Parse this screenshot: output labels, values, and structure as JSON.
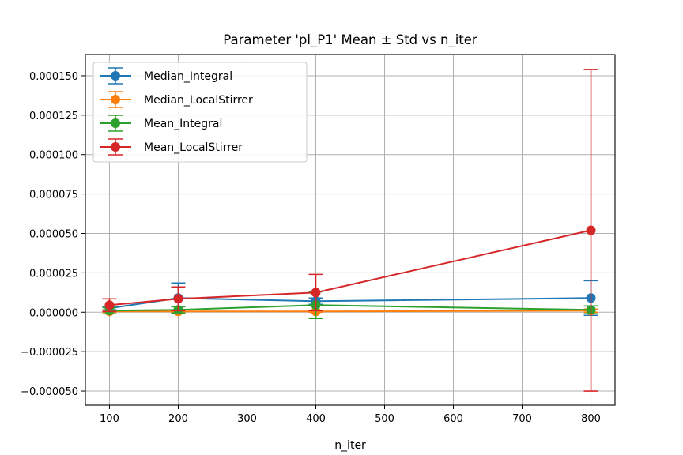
{
  "chart_data": {
    "type": "line",
    "title": "Parameter 'pl_P1' Mean ± Std vs n_iter",
    "xlabel": "n_iter",
    "ylabel": "",
    "x": [
      100,
      200,
      400,
      800
    ],
    "xlim": [
      65,
      835
    ],
    "ylim": [
      -5.9e-05,
      0.0001635
    ],
    "xticks": [
      100,
      200,
      300,
      400,
      500,
      600,
      700,
      800
    ],
    "xtick_labels": [
      "100",
      "200",
      "300",
      "400",
      "500",
      "600",
      "700",
      "800"
    ],
    "yticks": [
      -5e-05,
      -2.5e-05,
      0,
      2.5e-05,
      5e-05,
      7.5e-05,
      0.0001,
      0.000125,
      0.00015
    ],
    "ytick_labels": [
      "−0.000050",
      "−0.000025",
      "0.000000",
      "0.000025",
      "0.000050",
      "0.000075",
      "0.000100",
      "0.000125",
      "0.000150"
    ],
    "grid": true,
    "legend_position": "top-left",
    "error_bars": "std",
    "series": [
      {
        "name": "Median_Integral",
        "color": "#1f77b4",
        "values": [
          2.5e-06,
          9e-06,
          7e-06,
          9e-06
        ],
        "err": [
          1e-06,
          9.5e-06,
          2e-06,
          1.1e-05
        ]
      },
      {
        "name": "Median_LocalStirrer",
        "color": "#ff7f0e",
        "values": [
          5e-07,
          5e-07,
          5e-07,
          1e-06
        ],
        "err": [
          5e-07,
          5e-07,
          5e-07,
          1e-06
        ]
      },
      {
        "name": "Mean_Integral",
        "color": "#2ca02c",
        "values": [
          1e-06,
          1.5e-06,
          4.5e-06,
          1.5e-06
        ],
        "err": [
          2e-06,
          2e-06,
          8.5e-06,
          2.5e-06
        ]
      },
      {
        "name": "Mean_LocalStirrer",
        "color": "#d62728",
        "values": [
          4.5e-06,
          8.5e-06,
          1.25e-05,
          5.2e-05
        ],
        "err": [
          4e-06,
          7.5e-06,
          1.15e-05,
          0.000102
        ]
      }
    ]
  }
}
